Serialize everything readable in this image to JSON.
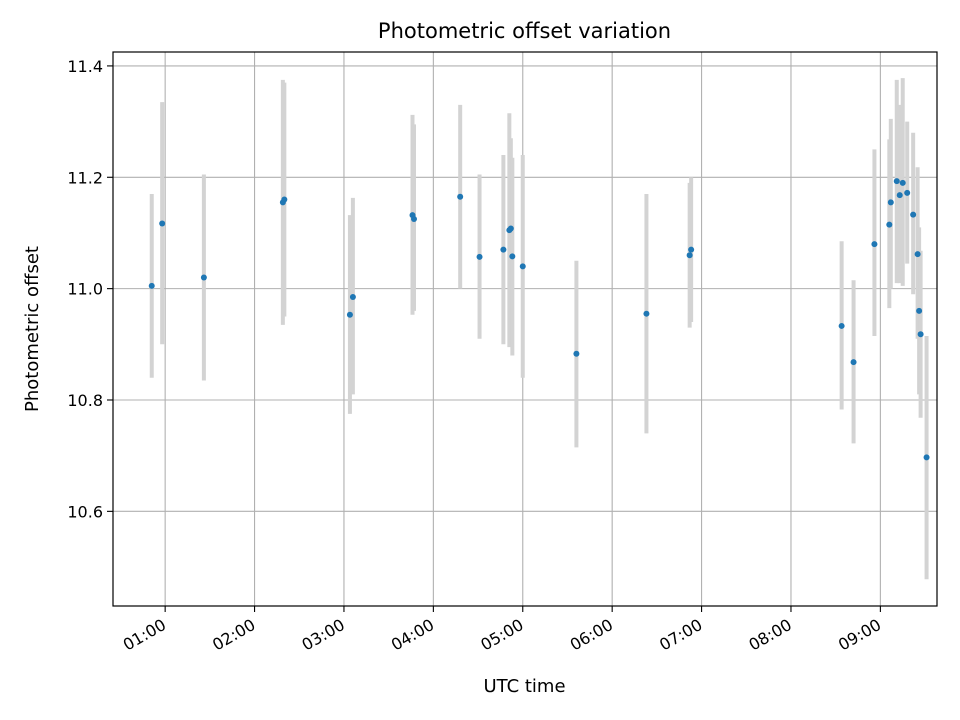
{
  "chart_data": {
    "type": "scatter",
    "title": "Photometric offset variation",
    "xlabel": "UTC time",
    "ylabel": "Photometric offset",
    "x_axis_kind": "time",
    "xlim": [
      "00:25",
      "09:38"
    ],
    "ylim": [
      10.43,
      11.425
    ],
    "x_ticks": [
      "01:00",
      "02:00",
      "03:00",
      "04:00",
      "05:00",
      "06:00",
      "07:00",
      "08:00",
      "09:00"
    ],
    "y_ticks": [
      10.6,
      10.8,
      11.0,
      11.2,
      11.4
    ],
    "y_tick_labels": [
      "10.6",
      "10.8",
      "11.0",
      "11.2",
      "11.4"
    ],
    "grid": true,
    "marker_color": "#1f77b4",
    "errorbar_color": "#d3d3d3",
    "series": [
      {
        "points": [
          {
            "x": "00:51",
            "y": 11.005,
            "ylow": 10.84,
            "yhigh": 11.17
          },
          {
            "x": "00:58",
            "y": 11.117,
            "ylow": 10.9,
            "yhigh": 11.335
          },
          {
            "x": "01:26",
            "y": 11.02,
            "ylow": 10.835,
            "yhigh": 11.205
          },
          {
            "x": "02:19",
            "y": 11.155,
            "ylow": 10.935,
            "yhigh": 11.375
          },
          {
            "x": "02:20",
            "y": 11.16,
            "ylow": 10.95,
            "yhigh": 11.37
          },
          {
            "x": "03:04",
            "y": 10.953,
            "ylow": 10.775,
            "yhigh": 11.132
          },
          {
            "x": "03:06",
            "y": 10.985,
            "ylow": 10.81,
            "yhigh": 11.163
          },
          {
            "x": "03:46",
            "y": 11.132,
            "ylow": 10.953,
            "yhigh": 11.312
          },
          {
            "x": "03:47",
            "y": 11.125,
            "ylow": 10.96,
            "yhigh": 11.295
          },
          {
            "x": "04:18",
            "y": 11.165,
            "ylow": 11.0,
            "yhigh": 11.33
          },
          {
            "x": "04:31",
            "y": 11.057,
            "ylow": 10.91,
            "yhigh": 11.205
          },
          {
            "x": "04:47",
            "y": 11.07,
            "ylow": 10.9,
            "yhigh": 11.24
          },
          {
            "x": "04:51",
            "y": 11.105,
            "ylow": 10.895,
            "yhigh": 11.315
          },
          {
            "x": "04:52",
            "y": 11.108,
            "ylow": 10.94,
            "yhigh": 11.27
          },
          {
            "x": "04:53",
            "y": 11.058,
            "ylow": 10.88,
            "yhigh": 11.235
          },
          {
            "x": "05:00",
            "y": 11.04,
            "ylow": 10.84,
            "yhigh": 11.24
          },
          {
            "x": "05:36",
            "y": 10.883,
            "ylow": 10.715,
            "yhigh": 11.05
          },
          {
            "x": "06:23",
            "y": 10.955,
            "ylow": 10.74,
            "yhigh": 11.17
          },
          {
            "x": "06:52",
            "y": 11.06,
            "ylow": 10.93,
            "yhigh": 11.19
          },
          {
            "x": "06:53",
            "y": 11.07,
            "ylow": 10.94,
            "yhigh": 11.2
          },
          {
            "x": "08:34",
            "y": 10.933,
            "ylow": 10.783,
            "yhigh": 11.085
          },
          {
            "x": "08:42",
            "y": 10.868,
            "ylow": 10.722,
            "yhigh": 11.015
          },
          {
            "x": "08:56",
            "y": 11.08,
            "ylow": 10.915,
            "yhigh": 11.25
          },
          {
            "x": "09:06",
            "y": 11.115,
            "ylow": 10.965,
            "yhigh": 11.268
          },
          {
            "x": "09:07",
            "y": 11.155,
            "ylow": 11.0,
            "yhigh": 11.305
          },
          {
            "x": "09:11",
            "y": 11.193,
            "ylow": 11.01,
            "yhigh": 11.375
          },
          {
            "x": "09:13",
            "y": 11.168,
            "ylow": 11.01,
            "yhigh": 11.33
          },
          {
            "x": "09:15",
            "y": 11.19,
            "ylow": 11.005,
            "yhigh": 11.378
          },
          {
            "x": "09:18",
            "y": 11.172,
            "ylow": 11.045,
            "yhigh": 11.3
          },
          {
            "x": "09:22",
            "y": 11.133,
            "ylow": 10.99,
            "yhigh": 11.28
          },
          {
            "x": "09:25",
            "y": 11.062,
            "ylow": 10.91,
            "yhigh": 11.218
          },
          {
            "x": "09:26",
            "y": 10.96,
            "ylow": 10.81,
            "yhigh": 11.11
          },
          {
            "x": "09:27",
            "y": 10.918,
            "ylow": 10.768,
            "yhigh": 11.068
          },
          {
            "x": "09:31",
            "y": 10.697,
            "ylow": 10.478,
            "yhigh": 10.915
          }
        ]
      }
    ]
  }
}
